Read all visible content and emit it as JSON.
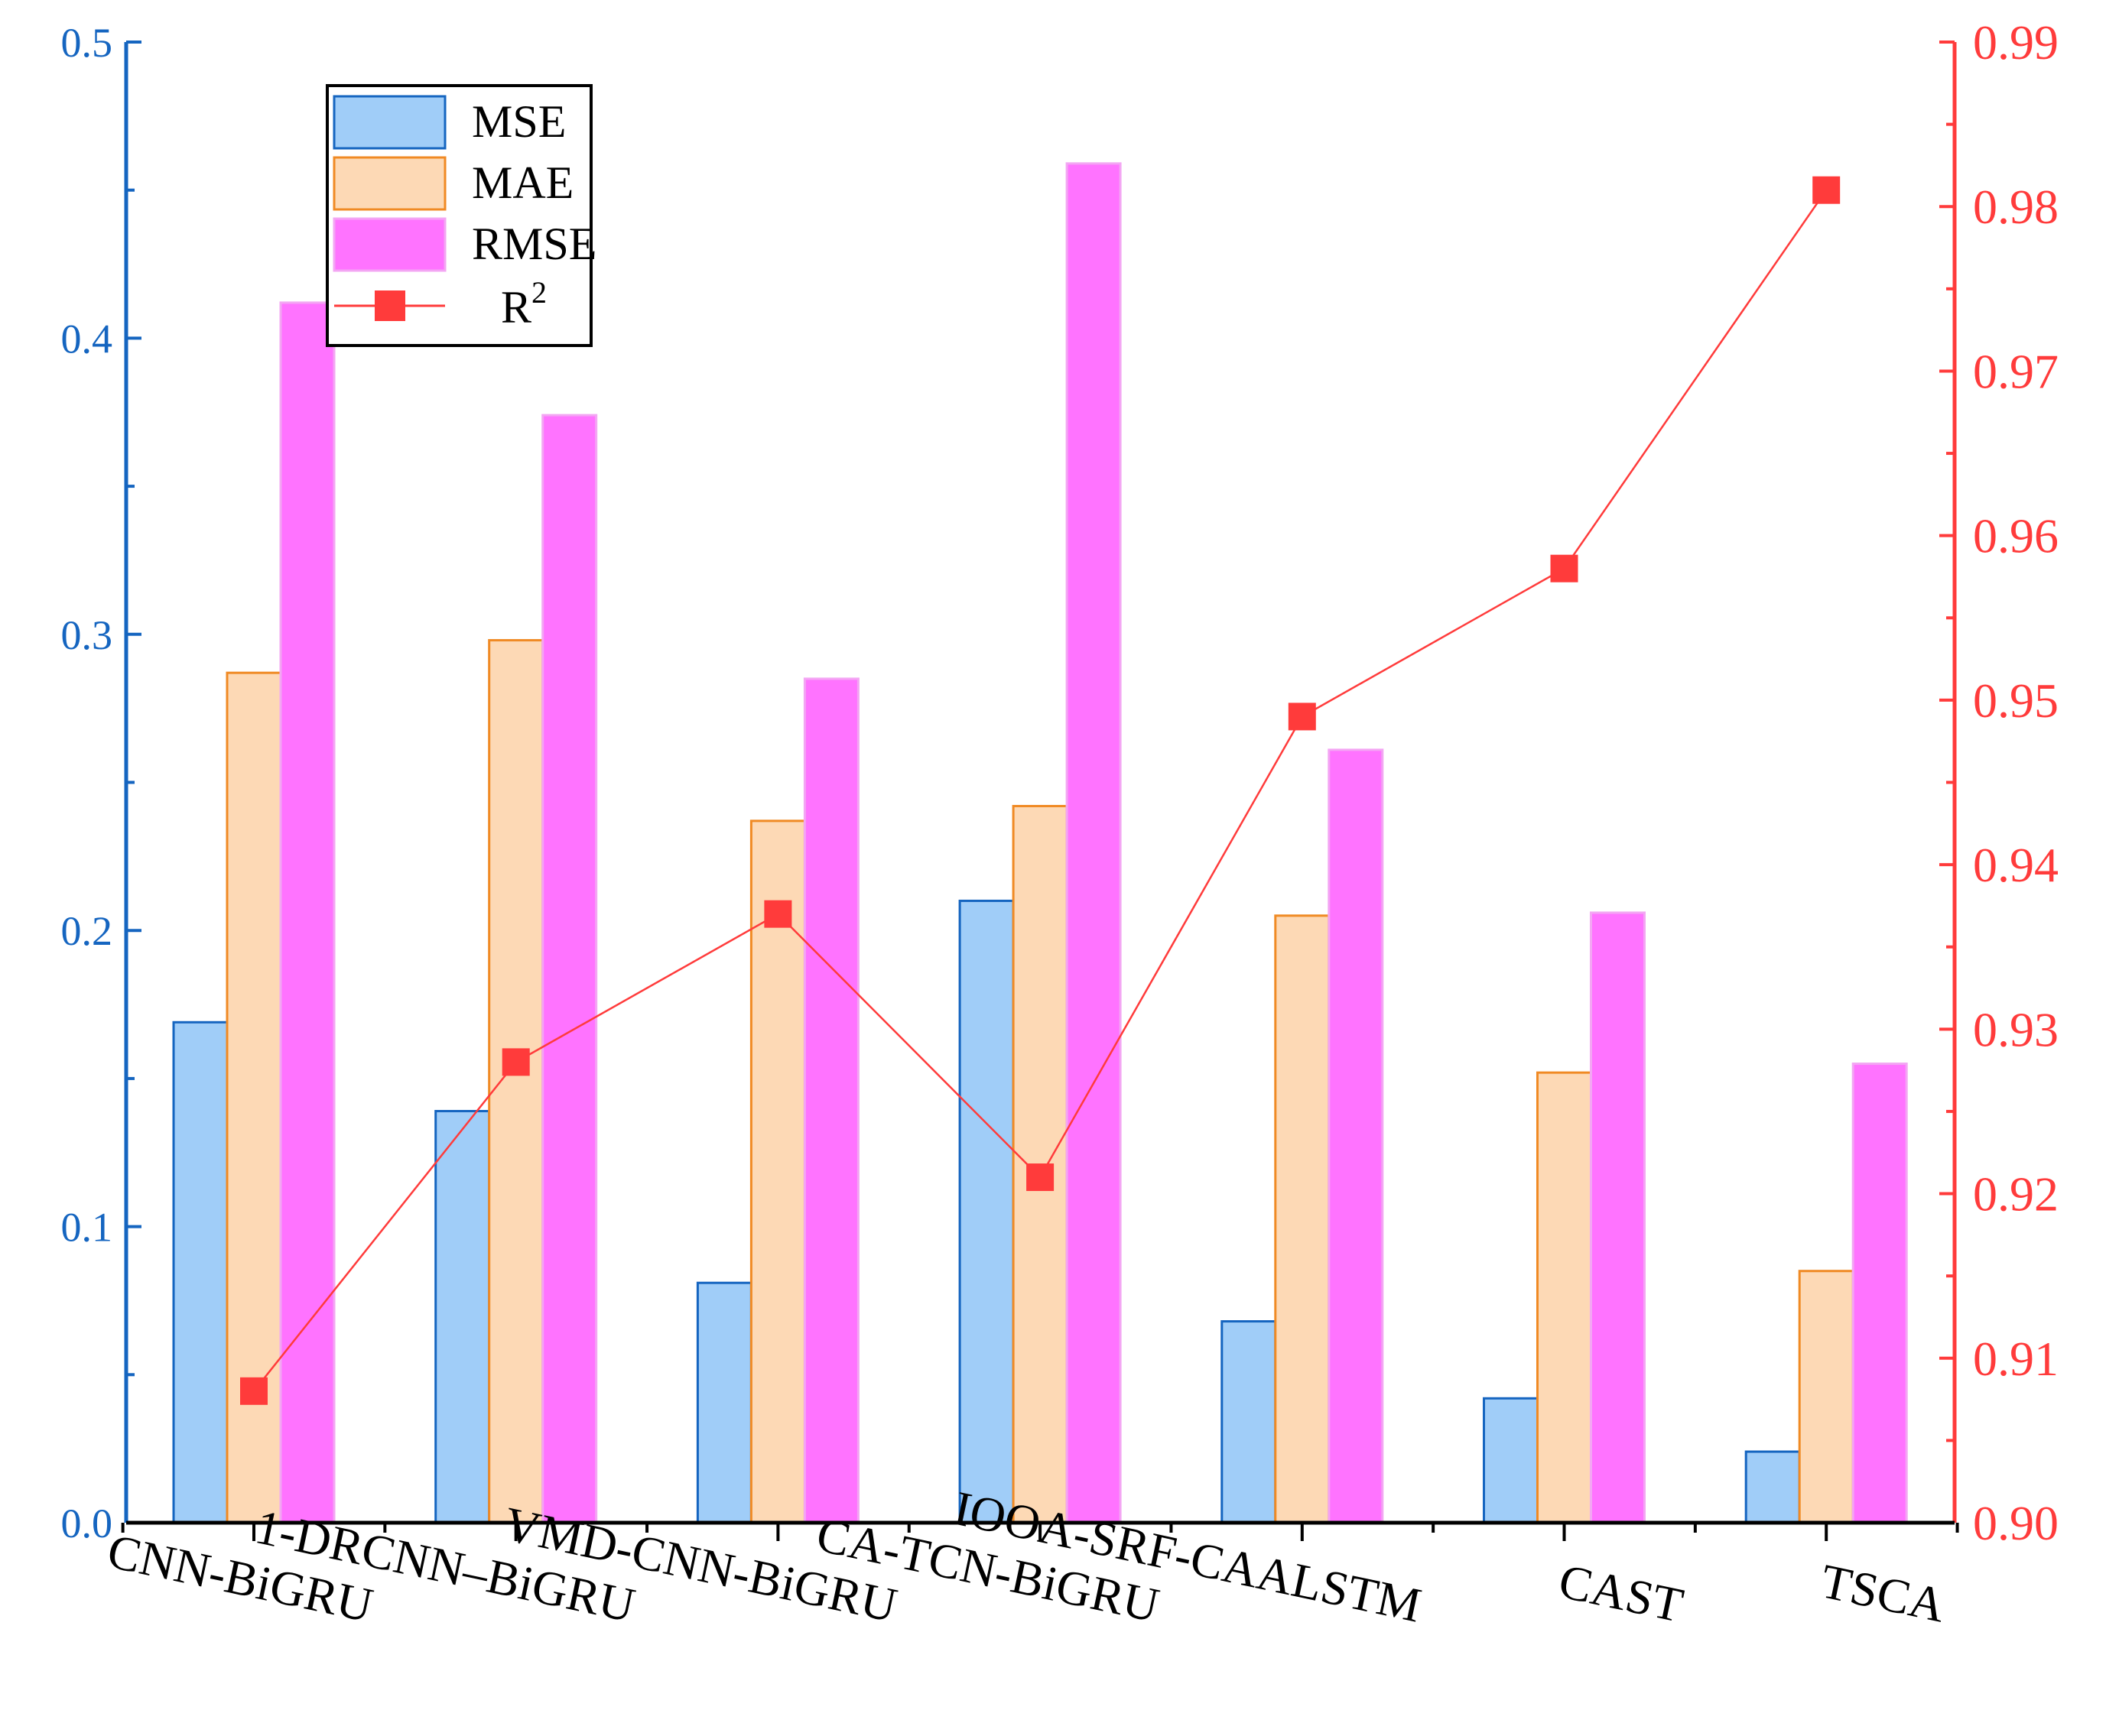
{
  "chart_data": {
    "type": "bar",
    "title": "",
    "xlabel": "",
    "ylabel": "",
    "y2label": "",
    "categories": [
      "CNN-BiGRU",
      "1-DRCNN–BiGRU",
      "VMD-CNN-BiGRU",
      "CA-TCN-BiGRU",
      "IOOA-SRF-CAALSTM",
      "CAST",
      "TSCA"
    ],
    "ylim": [
      0.0,
      0.5
    ],
    "y2lim": [
      0.9,
      0.99
    ],
    "yticks": [
      "0.0",
      "0.1",
      "0.2",
      "0.3",
      "0.4",
      "0.5"
    ],
    "y2ticks": [
      "0.90",
      "0.91",
      "0.92",
      "0.93",
      "0.94",
      "0.95",
      "0.96",
      "0.97",
      "0.98",
      "0.99"
    ],
    "series": [
      {
        "name": "MSE",
        "kind": "bar",
        "axis": "left",
        "fill": "#A0CDF8",
        "stroke": "#1565C0",
        "values": [
          0.169,
          0.139,
          0.081,
          0.21,
          0.068,
          0.042,
          0.024
        ]
      },
      {
        "name": "MAE",
        "kind": "bar",
        "axis": "left",
        "fill": "#FDD9B5",
        "stroke": "#F08A24",
        "values": [
          0.287,
          0.298,
          0.237,
          0.242,
          0.205,
          0.152,
          0.085
        ]
      },
      {
        "name": "RMSE",
        "kind": "bar",
        "axis": "left",
        "fill": "#FF73FF",
        "stroke": "#F3A6F3",
        "values": [
          0.412,
          0.374,
          0.285,
          0.459,
          0.261,
          0.206,
          0.155
        ]
      },
      {
        "name": "R",
        "superscript": "2",
        "kind": "line",
        "axis": "right",
        "color": "#FF3B3B",
        "values": [
          0.908,
          0.928,
          0.937,
          0.921,
          0.949,
          0.958,
          0.981
        ]
      }
    ],
    "legend_position": "top-left",
    "colors": {
      "left_axis": "#1565C0",
      "right_axis": "#FF3B3B"
    }
  }
}
